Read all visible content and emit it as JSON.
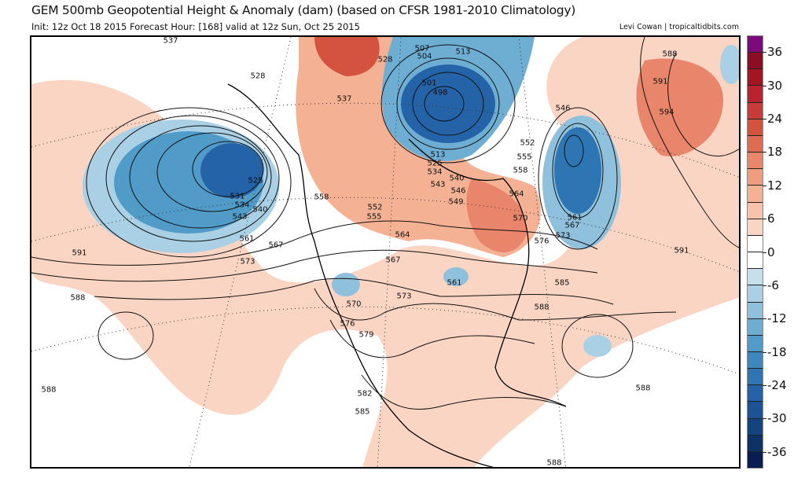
{
  "header": {
    "title": "GEM 500mb Geopotential Height & Anomaly (dam) (based on CFSR 1981-2010 Climatology)",
    "subtitle": "Init: 12z Oct 18 2015   Forecast Hour: [168]   valid at 12z Sun, Oct 25 2015",
    "credit": "Levi Cowan | tropicaltidbits.com"
  },
  "colorbar": {
    "ticks": [
      "36",
      "30",
      "24",
      "18",
      "12",
      "6",
      "0",
      "-6",
      "-12",
      "-18",
      "-24",
      "-30",
      "-36"
    ],
    "colors": [
      "#7b0b7b",
      "#8b0e25",
      "#a51521",
      "#bb2230",
      "#c93b38",
      "#d4533f",
      "#df6c52",
      "#e8856a",
      "#f09d7e",
      "#f5b194",
      "#f8c3aa",
      "#fbd5c3",
      "#ffffff",
      "#ffffff",
      "#c6dfed",
      "#a9d0e5",
      "#8fc1dd",
      "#6faed3",
      "#519bc9",
      "#3d88bf",
      "#2e75b4",
      "#2463a8",
      "#1b5396",
      "#14447f",
      "#0d3366",
      "#081d52"
    ]
  },
  "contour_labels": [
    "537",
    "528",
    "528",
    "507",
    "504",
    "513",
    "588",
    "591",
    "594",
    "501",
    "498",
    "546",
    "537",
    "513",
    "525",
    "534",
    "540",
    "543",
    "546",
    "549",
    "552",
    "555",
    "558",
    "564",
    "570",
    "561",
    "567",
    "573",
    "576",
    "531",
    "534",
    "543",
    "540",
    "525",
    "561",
    "567",
    "573",
    "558",
    "552",
    "555",
    "564",
    "567",
    "591",
    "588",
    "570",
    "576",
    "579",
    "573",
    "561",
    "585",
    "588",
    "582",
    "585",
    "588",
    "588",
    "588",
    "591"
  ]
}
